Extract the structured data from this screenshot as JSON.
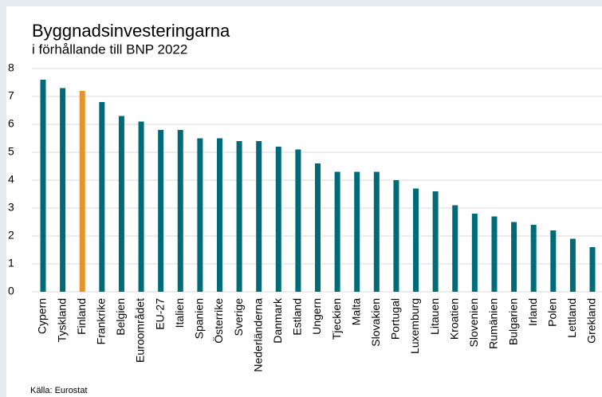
{
  "chart_data": {
    "type": "bar",
    "title": "Byggnadsinvesteringarna",
    "subtitle": "i förhållande till BNP 2022",
    "source": "Källa: Eurostat",
    "categories": [
      "Cypern",
      "Tyskland",
      "Finland",
      "Frankrike",
      "Belgien",
      "Euroområdet",
      "EU-27",
      "Italien",
      "Spanien",
      "Österrike",
      "Sverige",
      "Nederländerna",
      "Danmark",
      "Estland",
      "Ungern",
      "Tjeckien",
      "Malta",
      "Slovakien",
      "Portugal",
      "Luxemburg",
      "Litauen",
      "Kroatien",
      "Slovenien",
      "Rumänien",
      "Bulgarien",
      "Irland",
      "Polen",
      "Lettland",
      "Grekland"
    ],
    "values": [
      7.6,
      7.3,
      7.2,
      6.8,
      6.3,
      6.1,
      5.8,
      5.8,
      5.5,
      5.5,
      5.4,
      5.4,
      5.2,
      5.1,
      4.6,
      4.3,
      4.3,
      4.3,
      4.0,
      3.7,
      3.6,
      3.1,
      2.8,
      2.7,
      2.5,
      2.4,
      2.2,
      1.9,
      1.6
    ],
    "colors": [
      "#006b78",
      "#006b78",
      "#e3952a",
      "#006b78",
      "#006b78",
      "#006b78",
      "#006b78",
      "#006b78",
      "#006b78",
      "#006b78",
      "#006b78",
      "#006b78",
      "#006b78",
      "#006b78",
      "#006b78",
      "#006b78",
      "#006b78",
      "#006b78",
      "#006b78",
      "#006b78",
      "#006b78",
      "#006b78",
      "#006b78",
      "#006b78",
      "#006b78",
      "#006b78",
      "#006b78",
      "#006b78",
      "#006b78"
    ],
    "ylim": [
      0,
      8
    ],
    "yticks": [
      0,
      1,
      2,
      3,
      4,
      5,
      6,
      7,
      8
    ],
    "grid": true
  }
}
